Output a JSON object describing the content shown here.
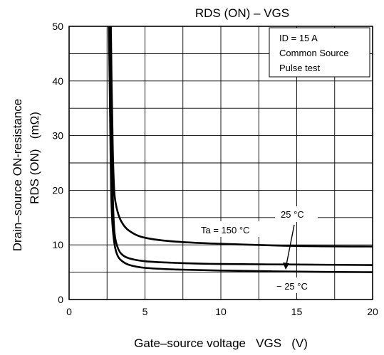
{
  "chart_data": {
    "type": "line",
    "title": "RDS (ON) – VGS",
    "xlabel": "Gate–source voltage   VGS   (V)",
    "ylabel_line1": "Drain–source ON-resistance",
    "ylabel_line2": "RDS (ON)   (mΩ)",
    "xlim": [
      0,
      20
    ],
    "ylim": [
      0,
      50
    ],
    "x_ticks": [
      0,
      5,
      10,
      15,
      20
    ],
    "y_ticks": [
      0,
      10,
      20,
      30,
      40,
      50
    ],
    "x_grid_step": 2.5,
    "y_grid_step": 5,
    "grid": true,
    "conditions": [
      "ID = 15 A",
      "Common Source",
      "Pulse test"
    ],
    "series": [
      {
        "name": "Ta = 150 °C",
        "x": [
          2.75,
          2.8,
          2.85,
          2.9,
          3.0,
          3.2,
          3.5,
          4.0,
          5.0,
          7.0,
          10.0,
          15.0,
          20.0
        ],
        "y": [
          50,
          40,
          32,
          25,
          19,
          16,
          14,
          12.5,
          11.3,
          10.6,
          10.2,
          9.8,
          9.7
        ]
      },
      {
        "name": "25 °C",
        "x": [
          2.7,
          2.75,
          2.8,
          2.85,
          2.9,
          3.0,
          3.2,
          3.5,
          4.0,
          5.0,
          7.0,
          10.0,
          15.0,
          20.0
        ],
        "y": [
          50,
          40,
          32,
          24,
          17,
          12,
          9.5,
          8.2,
          7.5,
          7.0,
          6.7,
          6.5,
          6.4,
          6.3
        ]
      },
      {
        "name": "− 25 °C",
        "x": [
          2.62,
          2.67,
          2.72,
          2.77,
          2.85,
          3.0,
          3.2,
          3.5,
          4.0,
          5.0,
          7.0,
          10.0,
          15.0,
          20.0
        ],
        "y": [
          50,
          40,
          30,
          20,
          14,
          10,
          8.0,
          7.0,
          6.3,
          5.8,
          5.5,
          5.3,
          5.1,
          5.0
        ]
      }
    ]
  }
}
